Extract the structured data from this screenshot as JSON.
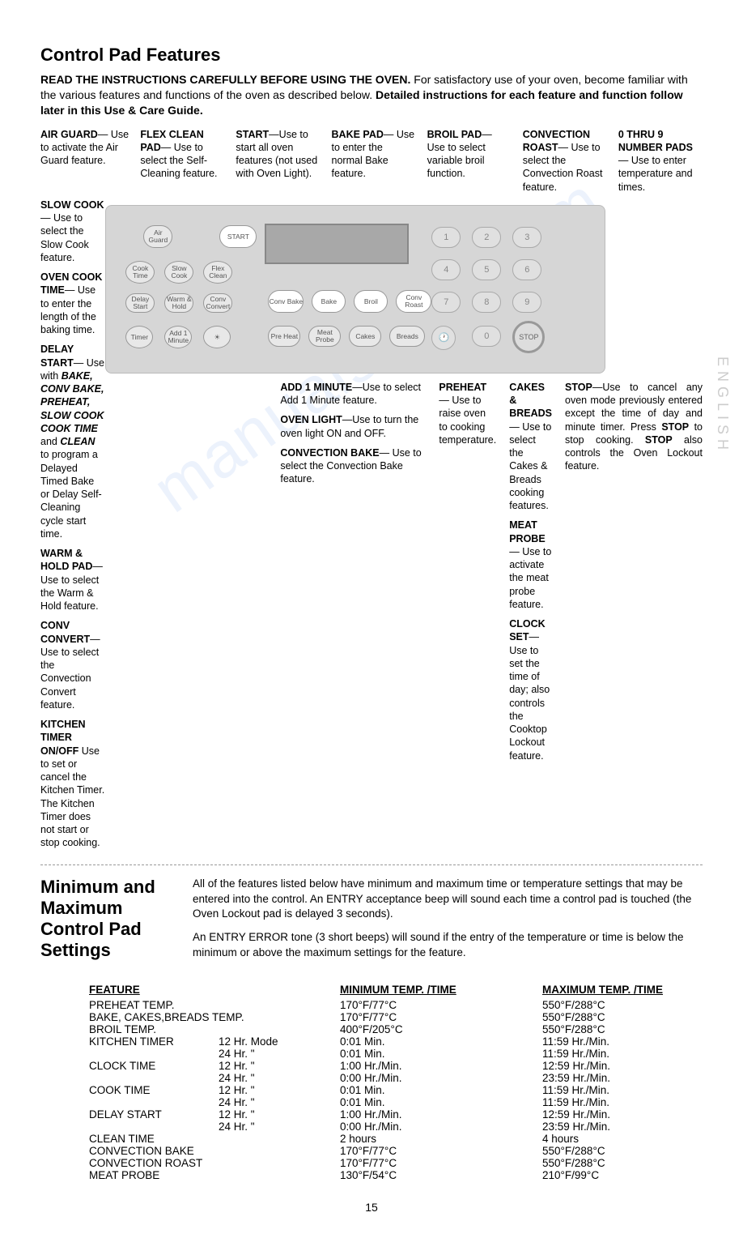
{
  "title": "Control Pad Features",
  "intro_bold_lead": "READ THE INSTRUCTIONS CAREFULLY BEFORE USING THE OVEN.",
  "intro_rest": " For satisfactory use of your oven, become familiar with the various features and functions of the oven as described below. ",
  "intro_bold_tail": "Detailed instructions for each feature and function follow later in this Use & Care Guide.",
  "top_callouts": [
    {
      "b": "AIR GUARD",
      "t": "— Use to activate the Air Guard feature."
    },
    {
      "b": "FLEX CLEAN PAD",
      "t": "— Use to select the Self-Cleaning feature."
    },
    {
      "b": "START",
      "t": "—Use to start all oven features (not used with Oven Light)."
    },
    {
      "b": "BAKE PAD",
      "t": "— Use to enter the normal Bake feature."
    },
    {
      "b": "BROIL PAD",
      "t": "— Use to select variable broil function."
    },
    {
      "b": "CONVECTION ROAST",
      "t": "— Use to select the Convection Roast feature."
    },
    {
      "b": "0 THRU 9 NUMBER PADS",
      "t": " — Use to enter temperature and times."
    }
  ],
  "left_callouts": [
    {
      "b": "SLOW COOK",
      "t": "— Use to select the Slow Cook feature."
    },
    {
      "b": "OVEN COOK TIME",
      "t": "— Use to enter the length of the baking time."
    },
    {
      "b": "DELAY START",
      "t": "— Use with ",
      "ib": "BAKE, CONV BAKE, PREHEAT, SLOW COOK COOK TIME",
      "t2": " and ",
      "ib2": "CLEAN",
      "t3": " to program a Delayed Timed Bake or Delay Self-Cleaning cycle start time."
    },
    {
      "b": "WARM & HOLD PAD",
      "t": "—Use to select the Warm & Hold feature."
    },
    {
      "b": "CONV CONVERT",
      "t": "—Use to select the Convection Convert feature."
    },
    {
      "b": "KITCHEN TIMER ON/OFF",
      "t": " Use to set or cancel the Kitchen Timer. The Kitchen Timer does not start or stop cooking."
    }
  ],
  "mid_callouts": [
    {
      "b": "ADD 1 MINUTE",
      "t": "—Use to select Add 1 Minute feature."
    },
    {
      "b": "OVEN LIGHT",
      "t": "—Use to turn the oven light ON and OFF."
    },
    {
      "b": "CONVECTION BAKE",
      "t": "— Use to select the Convection Bake feature."
    }
  ],
  "rmid_callouts": [
    {
      "b": "CAKES & BREADS",
      "t": "— Use to select the Cakes & Breads cooking features."
    },
    {
      "b": "MEAT PROBE",
      "t": "— Use to activate the meat probe feature."
    },
    {
      "b": "PREHEAT",
      "t": "— Use to raise oven to cooking temperature."
    },
    {
      "b": "CLOCK SET",
      "t": "— Use to set the time of day; also controls the Cooktop Lockout feature."
    }
  ],
  "right_callout": {
    "b": "STOP",
    "t": "—Use to cancel any oven mode previously entered except the time of day and minute timer. Press ",
    "b2": "STOP",
    "t2": " to stop cooking. ",
    "b3": "STOP",
    "t3": " also controls the Oven Lockout feature."
  },
  "panel": {
    "bg": "#d6d6d6",
    "buttons_left": [
      "Air Guard",
      "Cook Time",
      "Slow Cook",
      "Flex Clean",
      "Delay Start",
      "Warm & Hold",
      "Conv Convert",
      "Timer",
      "Add 1 Minute"
    ],
    "start": "START",
    "main_ovals": [
      "Conv Bake",
      "Bake",
      "Broil",
      "Conv Roast"
    ],
    "sub_ovals": [
      "Pre Heat",
      "Meat Probe",
      "Cakes",
      "Breads"
    ],
    "numbers": [
      "1",
      "2",
      "3",
      "4",
      "5",
      "6",
      "7",
      "8",
      "9",
      "0"
    ],
    "stop": "STOP"
  },
  "settings": {
    "heading1": "Minimum and",
    "heading2": "Maximum",
    "heading3": "Control Pad",
    "heading4": "Settings",
    "p1": "All of the features listed below have minimum and maximum time or temperature settings that may be entered into the control. An ENTRY acceptance beep will sound each time a control pad is touched (the Oven Lockout pad is delayed 3 seconds).",
    "p2": "An ENTRY ERROR tone (3 short beeps) will sound if the entry of the temperature or time is below the minimum or above the maximum settings for the feature."
  },
  "table": {
    "headers": [
      "FEATURE",
      "MINIMUM TEMP. /TIME",
      "MAXIMUM TEMP. /TIME"
    ],
    "rows": [
      {
        "f": "PREHEAT TEMP.",
        "m": "",
        "min": "170°F/77°C",
        "max": "550°F/288°C"
      },
      {
        "f": "BAKE, CAKES,BREADS TEMP.",
        "m": "",
        "min": "170°F/77°C",
        "max": "550°F/288°C"
      },
      {
        "f": "BROIL TEMP.",
        "m": "",
        "min": "400°F/205°C",
        "max": "550°F/288°C"
      },
      {
        "f": "KITCHEN TIMER",
        "m": "12 Hr. Mode",
        "min": "0:01 Min.",
        "max": "11:59 Hr./Min."
      },
      {
        "f": "",
        "m": "24 Hr.    \"",
        "min": "0:01 Min.",
        "max": "11:59 Hr./Min."
      },
      {
        "f": "CLOCK TIME",
        "m": "12 Hr.    \"",
        "min": "1:00 Hr./Min.",
        "max": "12:59 Hr./Min."
      },
      {
        "f": "",
        "m": "24 Hr.    \"",
        "min": "0:00 Hr./Min.",
        "max": "23:59 Hr./Min."
      },
      {
        "f": "COOK TIME",
        "m": "12 Hr.    \"",
        "min": "0:01 Min.",
        "max": "11:59 Hr./Min."
      },
      {
        "f": "",
        "m": "24 Hr.    \"",
        "min": "0:01 Min.",
        "max": "11:59 Hr./Min."
      },
      {
        "f": "DELAY START",
        "m": "12 Hr.    \"",
        "min": "1:00 Hr./Min.",
        "max": "12:59 Hr./Min."
      },
      {
        "f": "",
        "m": "24 Hr.    \"",
        "min": "0:00 Hr./Min.",
        "max": "23:59 Hr./Min."
      },
      {
        "f": "CLEAN TIME",
        "m": "",
        "min": "2 hours",
        "max": "4 hours"
      },
      {
        "f": "CONVECTION BAKE",
        "m": "",
        "min": "170°F/77°C",
        "max": "550°F/288°C"
      },
      {
        "f": "CONVECTION ROAST",
        "m": "",
        "min": "170°F/77°C",
        "max": "550°F/288°C"
      },
      {
        "f": "MEAT PROBE",
        "m": "",
        "min": "130°F/54°C",
        "max": "210°F/99°C"
      }
    ]
  },
  "side_text": "ENGLISH",
  "watermark": "manualshive.com",
  "page_number": "15"
}
